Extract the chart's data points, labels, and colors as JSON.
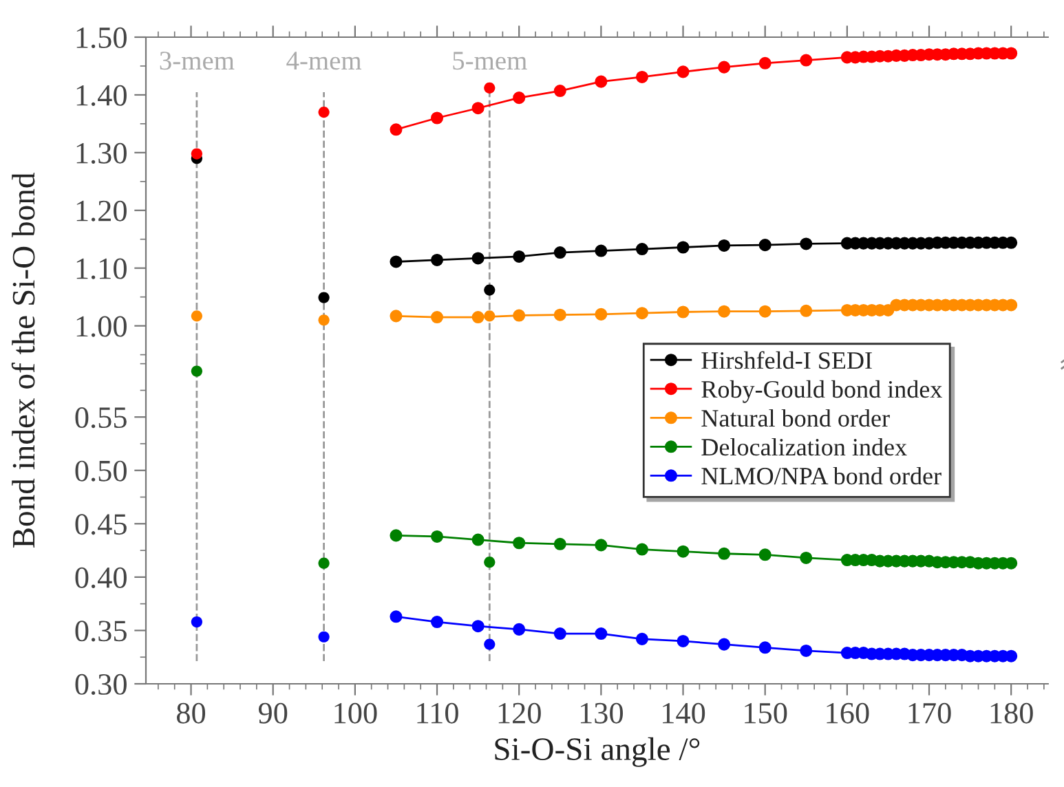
{
  "chart_data": [
    {
      "type": "line",
      "ylabel": "Bond index of the Si-O bond",
      "xlim": [
        74.5,
        184.5
      ],
      "xticks": [
        80,
        90,
        100,
        110,
        120,
        130,
        140,
        150,
        160,
        170,
        180
      ],
      "ylim": [
        0.94,
        1.5
      ],
      "yticks": [
        {
          "value": 1.0,
          "label": "1.00"
        },
        {
          "value": 1.1,
          "label": "1.10"
        },
        {
          "value": 1.2,
          "label": "1.20"
        },
        {
          "value": 1.3,
          "label": "1.30"
        },
        {
          "value": 1.4,
          "label": "1.40"
        },
        {
          "value": 1.5,
          "label": "1.50"
        }
      ],
      "tick_labels": "y",
      "marker": "circle",
      "grid": false,
      "legend": "bottom right",
      "ref_lines": [
        {
          "axis": "x",
          "value": 80.7,
          "label": "3-mem",
          "color": "#999999",
          "line_style": "dashed"
        },
        {
          "axis": "x",
          "value": 96.2,
          "label": "4-mem",
          "color": "#999999",
          "line_style": "dashed"
        },
        {
          "axis": "x",
          "value": 116.4,
          "label": "5-mem",
          "color": "#999999",
          "line_style": "dashed"
        }
      ],
      "series": [
        {
          "name": "Hirshfeld-I SEDI",
          "color": "#000000",
          "x": [
            105,
            110,
            115,
            120,
            125,
            130,
            135,
            140,
            145,
            150,
            155,
            160,
            161,
            162,
            163,
            164,
            165,
            166,
            167,
            168,
            169,
            170,
            171,
            172,
            173,
            174,
            175,
            176,
            177,
            178,
            179,
            180
          ],
          "values": [
            1.111,
            1.114,
            1.117,
            1.12,
            1.127,
            1.13,
            1.133,
            1.136,
            1.139,
            1.14,
            1.142,
            1.143,
            1.143,
            1.143,
            1.143,
            1.143,
            1.143,
            1.143,
            1.143,
            1.143,
            1.143,
            1.143,
            1.144,
            1.144,
            1.144,
            1.144,
            1.144,
            1.144,
            1.144,
            1.144,
            1.144,
            1.144
          ]
        },
        {
          "name": "Roby-Gould bond index",
          "color": "#ff0000",
          "x": [
            105,
            110,
            115,
            120,
            125,
            130,
            135,
            140,
            145,
            150,
            155,
            160,
            161,
            162,
            163,
            164,
            165,
            166,
            167,
            168,
            169,
            170,
            171,
            172,
            173,
            174,
            175,
            176,
            177,
            178,
            179,
            180
          ],
          "values": [
            1.34,
            1.36,
            1.377,
            1.395,
            1.407,
            1.423,
            1.431,
            1.44,
            1.448,
            1.455,
            1.46,
            1.465,
            1.465,
            1.466,
            1.466,
            1.467,
            1.467,
            1.468,
            1.468,
            1.469,
            1.469,
            1.47,
            1.47,
            1.47,
            1.471,
            1.471,
            1.471,
            1.472,
            1.472,
            1.472,
            1.472,
            1.472
          ]
        },
        {
          "name": "Natural bond order",
          "color": "#ff8c00",
          "x": [
            105,
            110,
            115,
            120,
            125,
            130,
            135,
            140,
            145,
            150,
            155,
            160,
            161,
            162,
            163,
            164,
            165,
            166,
            167,
            168,
            169,
            170,
            171,
            172,
            173,
            174,
            175,
            176,
            177,
            178,
            179,
            180
          ],
          "values": [
            1.017,
            1.015,
            1.015,
            1.018,
            1.019,
            1.02,
            1.022,
            1.024,
            1.025,
            1.025,
            1.026,
            1.027,
            1.027,
            1.027,
            1.027,
            1.027,
            1.027,
            1.036,
            1.036,
            1.036,
            1.036,
            1.036,
            1.036,
            1.036,
            1.036,
            1.036,
            1.036,
            1.036,
            1.036,
            1.036,
            1.036,
            1.036
          ]
        },
        {
          "color": "#000000",
          "type": "scatter",
          "x": [
            80.7,
            96.2,
            116.4
          ],
          "values": [
            1.29,
            1.049,
            1.062
          ]
        },
        {
          "color": "#ff0000",
          "type": "scatter",
          "x": [
            80.7,
            96.2,
            116.4
          ],
          "values": [
            1.298,
            1.37,
            1.412
          ]
        },
        {
          "color": "#ff8c00",
          "type": "scatter",
          "x": [
            80.7,
            96.2,
            116.4
          ],
          "values": [
            1.017,
            1.01,
            1.017
          ]
        }
      ]
    },
    {
      "type": "line",
      "xlabel": "Si-O-Si angle /°",
      "xlim": [
        74.5,
        184.5
      ],
      "xticks": [
        80,
        90,
        100,
        110,
        120,
        130,
        140,
        150,
        160,
        170,
        180
      ],
      "ylim": [
        0.3,
        0.603
      ],
      "yticks": [
        {
          "value": 0.3,
          "label": "0.30"
        },
        {
          "value": 0.35,
          "label": "0.35"
        },
        {
          "value": 0.4,
          "label": "0.40"
        },
        {
          "value": 0.45,
          "label": "0.45"
        },
        {
          "value": 0.5,
          "label": "0.50"
        },
        {
          "value": 0.55,
          "label": "0.55"
        }
      ],
      "marker": "circle",
      "grid": false,
      "legend": "top right",
      "ref_lines": [
        {
          "axis": "x",
          "value": 80.7,
          "label": null,
          "color": "#999999",
          "line_style": "dashed"
        },
        {
          "axis": "x",
          "value": 96.2,
          "label": null,
          "color": "#999999",
          "line_style": "dashed"
        },
        {
          "axis": "x",
          "value": 116.4,
          "label": null,
          "color": "#999999",
          "line_style": "dashed"
        }
      ],
      "series": [
        {
          "name": "Delocalization index",
          "color": "#008000",
          "x": [
            105,
            110,
            115,
            120,
            125,
            130,
            135,
            140,
            145,
            150,
            155,
            160,
            161,
            162,
            163,
            164,
            165,
            166,
            167,
            168,
            169,
            170,
            171,
            172,
            173,
            174,
            175,
            176,
            177,
            178,
            179,
            180
          ],
          "values": [
            0.439,
            0.438,
            0.435,
            0.432,
            0.431,
            0.43,
            0.426,
            0.424,
            0.422,
            0.421,
            0.418,
            0.416,
            0.416,
            0.416,
            0.416,
            0.415,
            0.415,
            0.415,
            0.415,
            0.415,
            0.415,
            0.415,
            0.414,
            0.414,
            0.414,
            0.414,
            0.414,
            0.413,
            0.413,
            0.413,
            0.413,
            0.413
          ]
        },
        {
          "name": "NLMO/NPA bond order",
          "color": "#0000ff",
          "x": [
            105,
            110,
            115,
            120,
            125,
            130,
            135,
            140,
            145,
            150,
            155,
            160,
            161,
            162,
            163,
            164,
            165,
            166,
            167,
            168,
            169,
            170,
            171,
            172,
            173,
            174,
            175,
            176,
            177,
            178,
            179,
            180
          ],
          "values": [
            0.363,
            0.358,
            0.354,
            0.351,
            0.347,
            0.347,
            0.342,
            0.34,
            0.337,
            0.334,
            0.331,
            0.329,
            0.329,
            0.329,
            0.328,
            0.328,
            0.328,
            0.328,
            0.328,
            0.327,
            0.327,
            0.327,
            0.327,
            0.327,
            0.327,
            0.327,
            0.326,
            0.326,
            0.326,
            0.326,
            0.326,
            0.326
          ]
        },
        {
          "color": "#008000",
          "type": "scatter",
          "x": [
            80.7,
            96.2,
            116.4
          ],
          "values": [
            0.593,
            0.413,
            0.414
          ]
        },
        {
          "color": "#0000ff",
          "type": "scatter",
          "x": [
            80.7,
            96.2,
            116.4
          ],
          "values": [
            0.358,
            0.344,
            0.337
          ]
        }
      ]
    }
  ]
}
